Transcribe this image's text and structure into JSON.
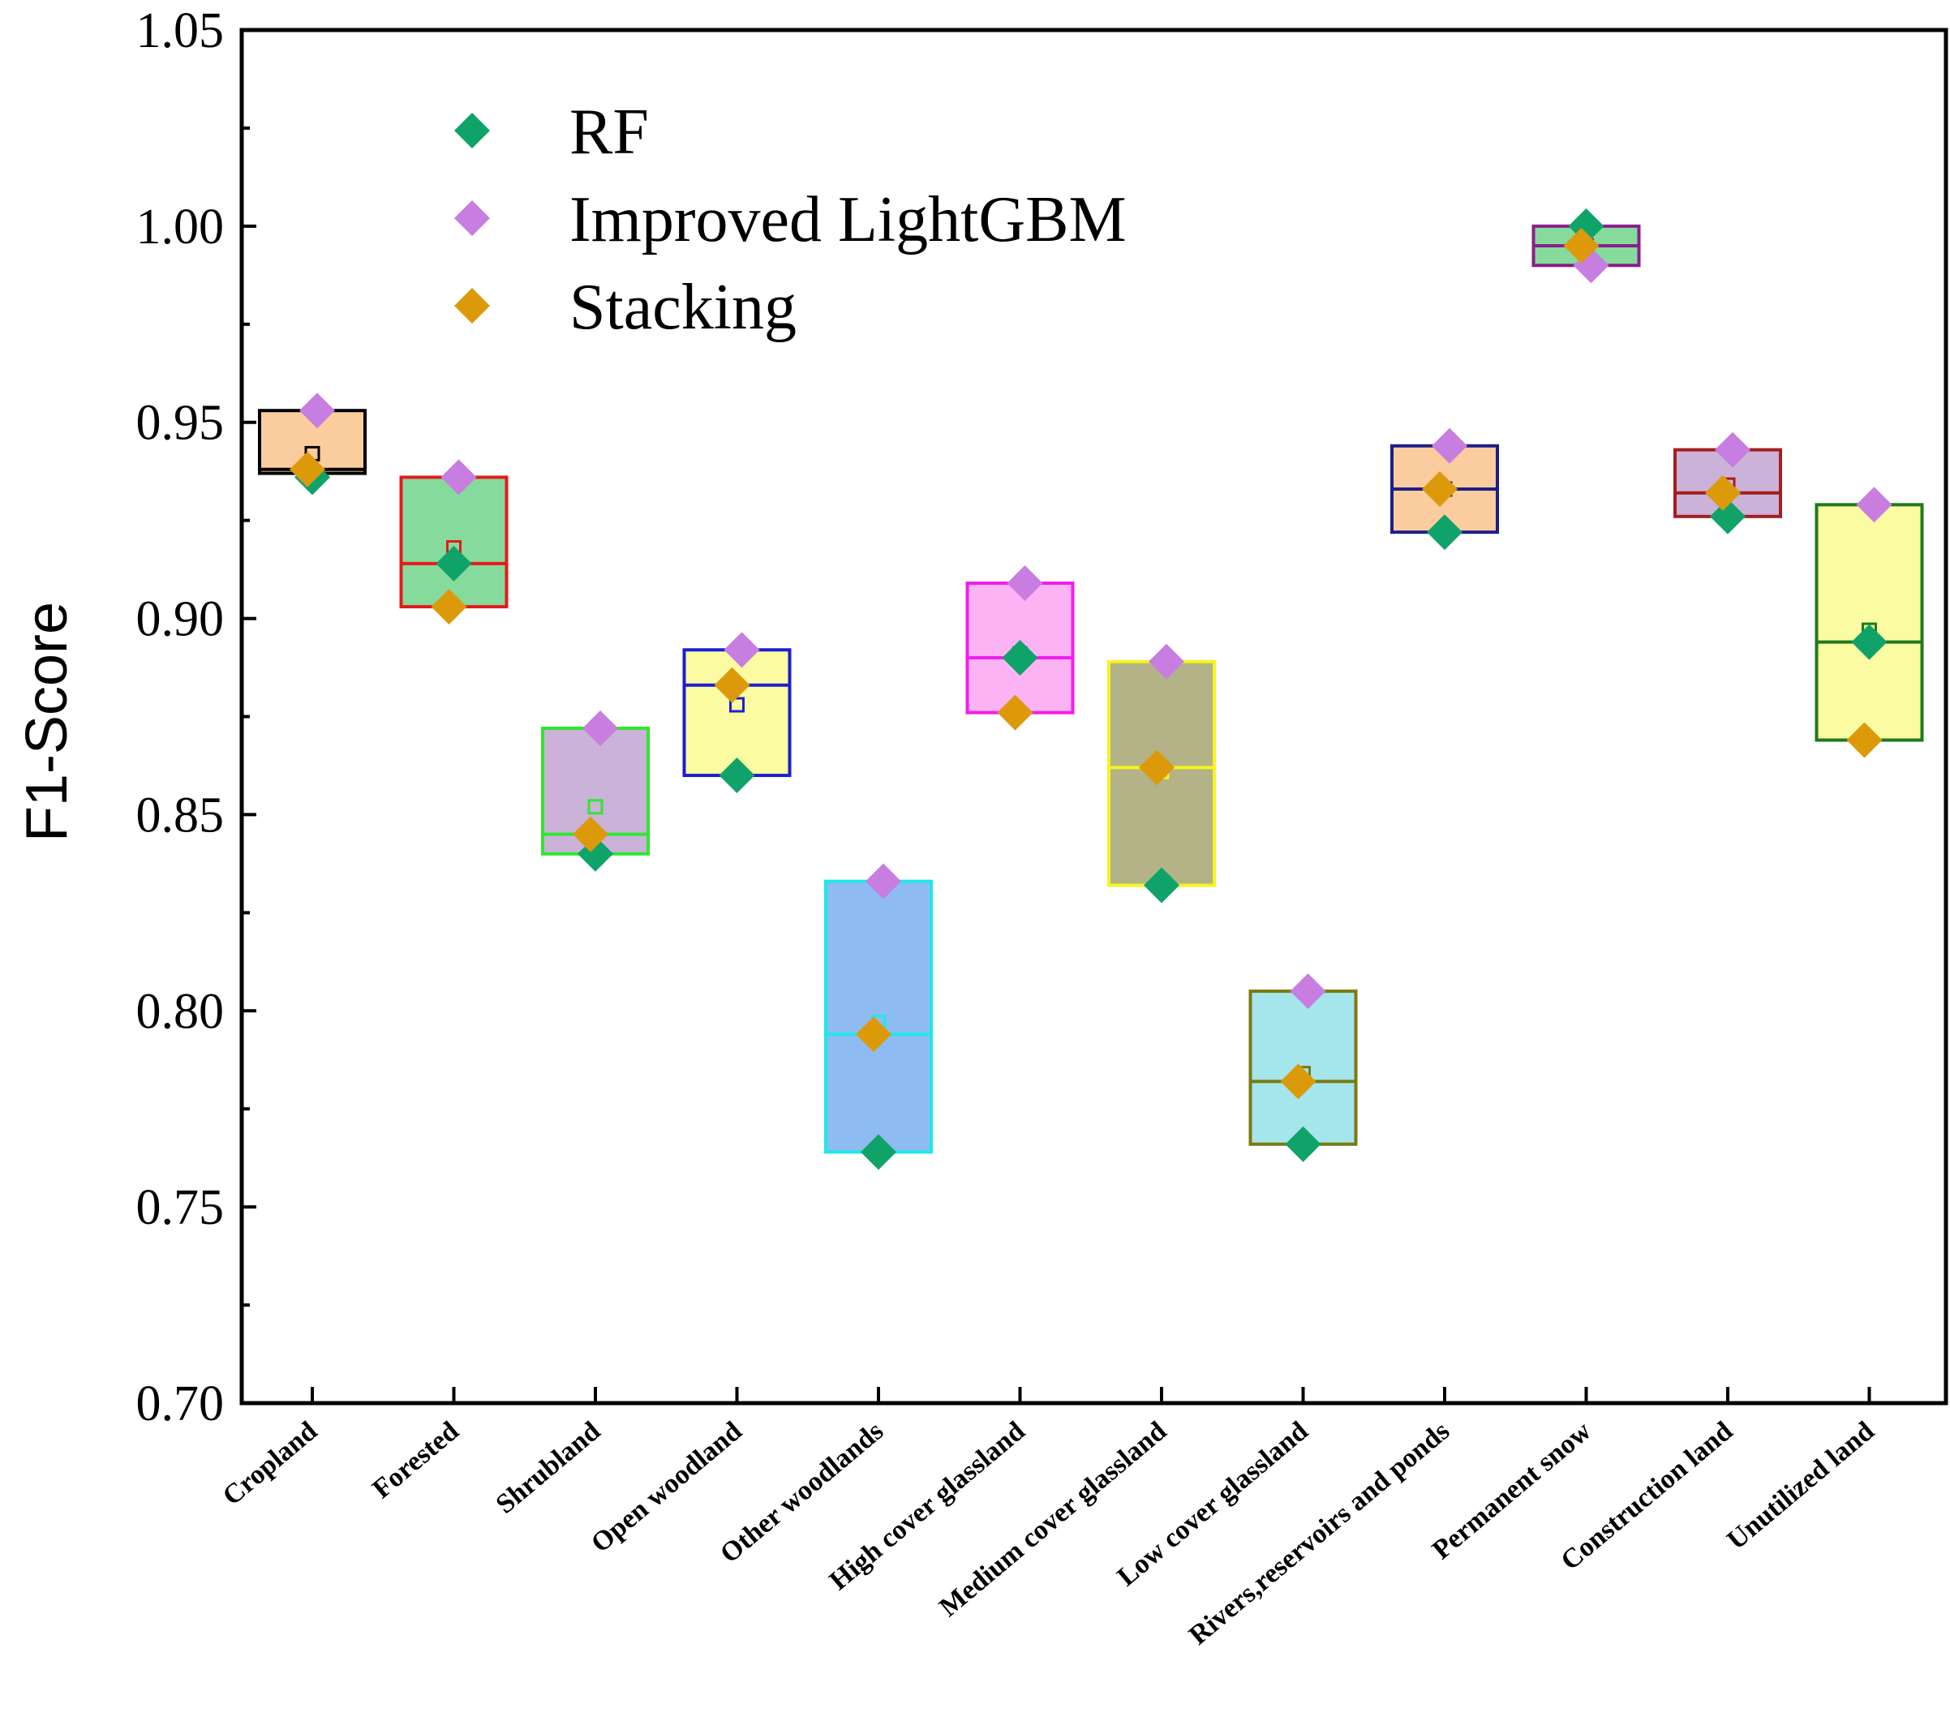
{
  "chart_data": {
    "type": "box",
    "ylabel": "F1-Score",
    "ylim": [
      0.7,
      1.05
    ],
    "yticks": [
      "0.70",
      "0.75",
      "0.80",
      "0.85",
      "0.90",
      "0.95",
      "1.00",
      "1.05"
    ],
    "categories": [
      "Cropland",
      "Forested",
      "Shrubland",
      "Open woodland",
      "Other woodlands",
      "High cover glassland",
      "Medium cover glassland",
      "Low cover glassland",
      "Rivers,reservoirs and ponds",
      "Permanent snow",
      "Construction land",
      "Unutilized land"
    ],
    "series": [
      {
        "name": "RF",
        "color": "#0fa36a",
        "values": [
          0.936,
          0.914,
          0.84,
          0.86,
          0.764,
          0.89,
          0.832,
          0.766,
          0.922,
          1.0,
          0.926,
          0.894
        ]
      },
      {
        "name": "Improved LightGBM",
        "color": "#c77ee0",
        "values": [
          0.953,
          0.936,
          0.872,
          0.892,
          0.833,
          0.909,
          0.889,
          0.805,
          0.944,
          0.99,
          0.943,
          0.929
        ]
      },
      {
        "name": "Stacking",
        "color": "#dc9a0a",
        "values": [
          0.938,
          0.903,
          0.845,
          0.883,
          0.794,
          0.876,
          0.862,
          0.782,
          0.933,
          0.995,
          0.932,
          0.869
        ]
      }
    ],
    "boxes": [
      {
        "q1": 0.937,
        "q3": 0.953,
        "median": 0.938,
        "mean": 0.942,
        "fill": "#fbcd9e",
        "edge": "#000000"
      },
      {
        "q1": 0.903,
        "q3": 0.936,
        "median": 0.914,
        "mean": 0.918,
        "fill": "#86db9c",
        "edge": "#e41a1a"
      },
      {
        "q1": 0.84,
        "q3": 0.872,
        "median": 0.845,
        "mean": 0.852,
        "fill": "#cbb2d8",
        "edge": "#2ee82e"
      },
      {
        "q1": 0.86,
        "q3": 0.892,
        "median": 0.883,
        "mean": 0.878,
        "fill": "#fbfba2",
        "edge": "#1e1ed1"
      },
      {
        "q1": 0.764,
        "q3": 0.833,
        "median": 0.794,
        "mean": 0.797,
        "fill": "#8ebcf2",
        "edge": "#1ee8e8"
      },
      {
        "q1": 0.876,
        "q3": 0.909,
        "median": 0.89,
        "mean": 0.891,
        "fill": "#fbb3f3",
        "edge": "#f01ef0"
      },
      {
        "q1": 0.832,
        "q3": 0.889,
        "median": 0.862,
        "mean": 0.861,
        "fill": "#b3b387",
        "edge": "#f5f51e"
      },
      {
        "q1": 0.766,
        "q3": 0.805,
        "median": 0.782,
        "mean": 0.784,
        "fill": "#a4e6ec",
        "edge": "#7a7a12"
      },
      {
        "q1": 0.922,
        "q3": 0.944,
        "median": 0.933,
        "mean": 0.933,
        "fill": "#fbcd9e",
        "edge": "#1e1e8a"
      },
      {
        "q1": 0.99,
        "q3": 1.0,
        "median": 0.995,
        "mean": 0.995,
        "fill": "#86db9c",
        "edge": "#8a1e8a"
      },
      {
        "q1": 0.926,
        "q3": 0.943,
        "median": 0.932,
        "mean": 0.934,
        "fill": "#cbb2d8",
        "edge": "#a31e1e"
      },
      {
        "q1": 0.869,
        "q3": 0.929,
        "median": 0.894,
        "mean": 0.897,
        "fill": "#fbfba2",
        "edge": "#1e7a1e"
      }
    ],
    "legend_position": "top-left"
  }
}
